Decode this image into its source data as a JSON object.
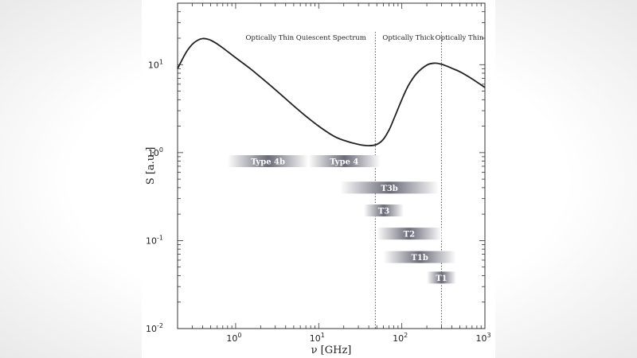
{
  "chart_data": {
    "type": "line",
    "title": "",
    "xlabel": "ν [GHz]",
    "ylabel": "S [a.u.]",
    "x_scale": "log",
    "y_scale": "log",
    "xlim": [
      0.2,
      1000
    ],
    "ylim": [
      0.01,
      50
    ],
    "x_ticks": [
      {
        "base": "10",
        "exp": "0",
        "value": 1
      },
      {
        "base": "10",
        "exp": "1",
        "value": 10
      },
      {
        "base": "10",
        "exp": "2",
        "value": 100
      },
      {
        "base": "10",
        "exp": "3",
        "value": 1000
      }
    ],
    "y_ticks": [
      {
        "base": "10",
        "exp": "-2",
        "value": 0.01
      },
      {
        "base": "10",
        "exp": "-1",
        "value": 0.1
      },
      {
        "base": "10",
        "exp": "0",
        "value": 1
      },
      {
        "base": "10",
        "exp": "1",
        "value": 10
      }
    ],
    "grid": false,
    "series": [
      {
        "x": [
          0.2,
          0.25,
          0.3,
          0.35,
          0.4,
          0.45,
          0.5,
          0.6,
          0.7,
          0.85,
          1,
          1.5,
          2,
          3,
          5,
          7,
          10,
          15,
          20,
          30,
          40,
          50,
          60,
          70,
          80,
          100,
          120,
          150,
          200,
          250,
          300,
          350,
          400,
          500,
          700,
          1000
        ],
        "y": [
          9.0,
          13.5,
          17.0,
          19.0,
          19.8,
          19.6,
          19.0,
          17.2,
          15.5,
          13.5,
          12.0,
          9.0,
          7.2,
          5.2,
          3.4,
          2.6,
          2.0,
          1.55,
          1.38,
          1.24,
          1.2,
          1.24,
          1.42,
          1.8,
          2.4,
          4.0,
          5.8,
          7.9,
          9.9,
          10.4,
          10.1,
          9.6,
          9.1,
          8.3,
          6.9,
          5.5
        ]
      }
    ],
    "dividers_x": [
      48,
      300
    ],
    "regions": [
      {
        "label": "Optically Thin Quiescent Spectrum",
        "x_center": 7
      },
      {
        "label": "Optically Thick",
        "x_center": 120
      },
      {
        "label": "Optically Thin",
        "x_center": 650
      }
    ],
    "bands": [
      {
        "label": "Type 4b",
        "x_start": 0.8,
        "x_end": 7.5,
        "y": 0.8
      },
      {
        "label": "Type 4",
        "x_start": 7.5,
        "x_end": 55,
        "y": 0.8
      },
      {
        "label": "T3b",
        "x_start": 18,
        "x_end": 280,
        "y": 0.4
      },
      {
        "label": "T3",
        "x_start": 35,
        "x_end": 105,
        "y": 0.22
      },
      {
        "label": "T2",
        "x_start": 50,
        "x_end": 300,
        "y": 0.12
      },
      {
        "label": "T1b",
        "x_start": 60,
        "x_end": 450,
        "y": 0.065
      },
      {
        "label": "T1",
        "x_start": 200,
        "x_end": 450,
        "y": 0.038
      }
    ]
  }
}
